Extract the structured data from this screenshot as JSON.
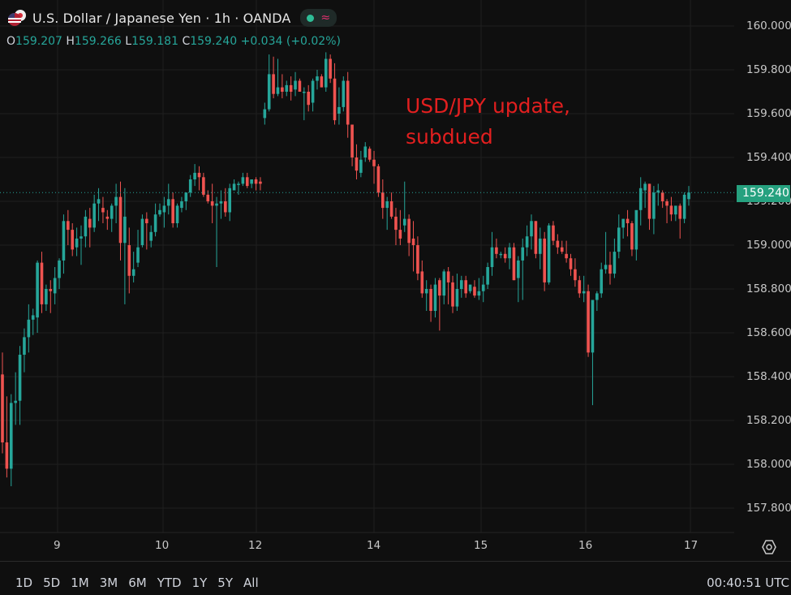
{
  "header": {
    "symbol_title": "U.S. Dollar / Japanese Yen · 1h · OANDA",
    "status_dot_color": "#2ebd96",
    "wave_glyph": "≈",
    "ohlc": {
      "o_label": "O",
      "o_value": "159.207",
      "h_label": "H",
      "h_value": "159.266",
      "l_label": "L",
      "l_value": "159.181",
      "c_label": "C",
      "c_value": "159.240",
      "change": "+0.034 (+0.02%)"
    }
  },
  "annotation": {
    "line1": "USD/JPY update,",
    "line2": "subdued",
    "color": "#e21f1f"
  },
  "price_axis": {
    "labels": [
      "160.000",
      "159.800",
      "159.600",
      "159.400",
      "159.200",
      "159.000",
      "158.800",
      "158.600",
      "158.400",
      "158.200",
      "158.000",
      "157.800"
    ],
    "last_price": "159.240",
    "last_price_color": "#26a17f"
  },
  "time_axis": {
    "labels": [
      "9",
      "10",
      "12",
      "14",
      "15",
      "16",
      "17"
    ]
  },
  "bottom_bar": {
    "ranges": [
      "1D",
      "5D",
      "1M",
      "3M",
      "6M",
      "YTD",
      "1Y",
      "5Y",
      "All"
    ],
    "clock": "00:40:51 UTC"
  },
  "colors": {
    "up": "#26a69a",
    "down": "#ef5350",
    "background": "#0f0f0f",
    "grid": "#1f1f1f"
  },
  "chart_data": {
    "type": "candlestick",
    "title": "U.S. Dollar / Japanese Yen · 1h · OANDA",
    "xlabel": "",
    "ylabel": "",
    "ylim": [
      157.7,
      160.05
    ],
    "x_ticks": [
      "9",
      "10",
      "12",
      "14",
      "15",
      "16",
      "17"
    ],
    "y_ticks": [
      157.8,
      158.0,
      158.2,
      158.4,
      158.6,
      158.8,
      159.0,
      159.2,
      159.4,
      159.6,
      159.8,
      160.0
    ],
    "grid": true,
    "last_price": 159.24,
    "annotation": "USD/JPY update, subdued",
    "candles": [
      [
        158.41,
        158.51,
        158.05,
        158.1
      ],
      [
        158.1,
        158.31,
        157.94,
        157.98
      ],
      [
        157.98,
        158.32,
        157.9,
        158.28
      ],
      [
        158.28,
        158.42,
        158.18,
        158.29
      ],
      [
        158.29,
        158.54,
        158.18,
        158.5
      ],
      [
        158.5,
        158.62,
        158.42,
        158.58
      ],
      [
        158.58,
        158.73,
        158.51,
        158.66
      ],
      [
        158.66,
        158.71,
        158.59,
        158.68
      ],
      [
        158.67,
        158.93,
        158.6,
        158.92
      ],
      [
        158.92,
        158.97,
        158.69,
        158.73
      ],
      [
        158.73,
        158.82,
        158.7,
        158.8
      ],
      [
        158.8,
        158.84,
        158.69,
        158.79
      ],
      [
        158.78,
        158.9,
        158.73,
        158.85
      ],
      [
        158.85,
        158.94,
        158.8,
        158.93
      ],
      [
        158.93,
        159.14,
        158.87,
        159.11
      ],
      [
        159.11,
        159.16,
        159.0,
        159.07
      ],
      [
        159.07,
        159.1,
        158.95,
        158.98
      ],
      [
        158.99,
        159.08,
        158.95,
        159.03
      ],
      [
        159.03,
        159.09,
        158.91,
        159.04
      ],
      [
        159.04,
        159.16,
        158.99,
        159.13
      ],
      [
        159.12,
        159.17,
        158.99,
        159.08
      ],
      [
        159.08,
        159.23,
        159.06,
        159.19
      ],
      [
        159.19,
        159.26,
        159.11,
        159.21
      ],
      [
        159.17,
        159.22,
        159.1,
        159.15
      ],
      [
        159.13,
        159.16,
        159.07,
        159.12
      ],
      [
        159.12,
        159.19,
        159.06,
        159.18
      ],
      [
        159.18,
        159.28,
        159.1,
        159.22
      ],
      [
        159.22,
        159.29,
        158.93,
        159.01
      ],
      [
        159.01,
        159.26,
        158.73,
        159.13
      ],
      [
        159.0,
        159.08,
        158.78,
        158.86
      ],
      [
        158.86,
        158.97,
        158.83,
        158.89
      ],
      [
        158.92,
        159.07,
        158.9,
        158.99
      ],
      [
        159.0,
        159.14,
        158.99,
        159.12
      ],
      [
        159.12,
        159.15,
        158.98,
        159.1
      ],
      [
        159.02,
        159.09,
        158.99,
        159.06
      ],
      [
        159.06,
        159.19,
        159.04,
        159.14
      ],
      [
        159.14,
        159.19,
        159.13,
        159.16
      ],
      [
        159.15,
        159.22,
        159.08,
        159.18
      ],
      [
        159.18,
        159.28,
        159.14,
        159.21
      ],
      [
        159.21,
        159.24,
        159.08,
        159.1
      ],
      [
        159.1,
        159.19,
        159.08,
        159.18
      ],
      [
        159.17,
        159.22,
        159.15,
        159.2
      ],
      [
        159.2,
        159.24,
        159.16,
        159.24
      ],
      [
        159.24,
        159.32,
        159.22,
        159.3
      ],
      [
        159.3,
        159.37,
        159.27,
        159.33
      ],
      [
        159.33,
        159.36,
        159.25,
        159.31
      ],
      [
        159.31,
        159.33,
        159.22,
        159.23
      ],
      [
        159.23,
        159.25,
        159.19,
        159.2
      ],
      [
        159.2,
        159.28,
        159.1,
        159.18
      ],
      [
        159.18,
        159.22,
        158.9,
        159.19
      ],
      [
        159.19,
        159.25,
        159.12,
        159.2
      ],
      [
        159.2,
        159.26,
        159.13,
        159.15
      ],
      [
        159.15,
        159.28,
        159.11,
        159.26
      ],
      [
        159.25,
        159.3,
        159.25,
        159.28
      ],
      [
        159.28,
        159.29,
        159.23,
        159.28
      ],
      [
        159.28,
        159.33,
        159.27,
        159.31
      ],
      [
        159.31,
        159.33,
        159.26,
        159.27
      ],
      [
        159.28,
        159.28,
        159.26,
        159.3
      ],
      [
        159.3,
        159.31,
        159.25,
        159.28
      ],
      [
        159.29,
        159.31,
        159.25,
        159.28
      ],
      [
        159.58,
        159.65,
        159.55,
        159.62
      ],
      [
        159.62,
        159.87,
        159.61,
        159.78
      ],
      [
        159.78,
        159.86,
        159.67,
        159.69
      ],
      [
        159.69,
        159.85,
        159.68,
        159.72
      ],
      [
        159.72,
        159.78,
        159.67,
        159.7
      ],
      [
        159.7,
        159.75,
        159.68,
        159.73
      ],
      [
        159.73,
        159.77,
        159.66,
        159.7
      ],
      [
        159.71,
        159.79,
        159.68,
        159.75
      ],
      [
        159.75,
        159.76,
        159.7,
        159.7
      ],
      [
        159.7,
        159.72,
        159.57,
        159.7
      ],
      [
        159.7,
        159.73,
        159.61,
        159.64
      ],
      [
        159.65,
        159.76,
        159.61,
        159.75
      ],
      [
        159.75,
        159.8,
        159.71,
        159.77
      ],
      [
        159.77,
        159.78,
        159.72,
        159.72
      ],
      [
        159.72,
        159.88,
        159.7,
        159.85
      ],
      [
        159.85,
        159.87,
        159.74,
        159.76
      ],
      [
        159.76,
        159.83,
        159.55,
        159.57
      ],
      [
        159.6,
        159.72,
        159.55,
        159.63
      ],
      [
        159.63,
        159.77,
        159.61,
        159.75
      ],
      [
        159.75,
        159.79,
        159.49,
        159.55
      ],
      [
        159.55,
        159.55,
        159.36,
        159.4
      ],
      [
        159.4,
        159.46,
        159.3,
        159.34
      ],
      [
        159.33,
        159.43,
        159.31,
        159.39
      ],
      [
        159.4,
        159.47,
        159.38,
        159.45
      ],
      [
        159.44,
        159.45,
        159.38,
        159.39
      ],
      [
        159.39,
        159.43,
        159.28,
        159.36
      ],
      [
        159.36,
        159.37,
        159.22,
        159.24
      ],
      [
        159.24,
        159.3,
        159.12,
        159.17
      ],
      [
        159.17,
        159.22,
        159.07,
        159.2
      ],
      [
        159.2,
        159.24,
        159.12,
        159.13
      ],
      [
        159.13,
        159.17,
        159.0,
        159.07
      ],
      [
        159.07,
        159.16,
        159.0,
        159.03
      ],
      [
        159.09,
        159.29,
        159.06,
        159.12
      ],
      [
        159.12,
        159.14,
        158.95,
        159.01
      ],
      [
        159.03,
        159.11,
        158.88,
        159.0
      ],
      [
        159.0,
        159.04,
        158.84,
        158.87
      ],
      [
        158.88,
        158.93,
        158.76,
        158.78
      ],
      [
        158.78,
        158.84,
        158.7,
        158.8
      ],
      [
        158.8,
        158.82,
        158.65,
        158.7
      ],
      [
        158.7,
        158.85,
        158.67,
        158.82
      ],
      [
        158.84,
        158.85,
        158.61,
        158.77
      ],
      [
        158.77,
        158.89,
        158.73,
        158.88
      ],
      [
        158.88,
        158.9,
        158.73,
        158.83
      ],
      [
        158.83,
        158.86,
        158.69,
        158.72
      ],
      [
        158.72,
        158.87,
        158.7,
        158.8
      ],
      [
        158.8,
        158.86,
        158.76,
        158.84
      ],
      [
        158.84,
        158.86,
        158.76,
        158.78
      ],
      [
        158.79,
        158.82,
        158.78,
        158.82
      ],
      [
        158.81,
        158.84,
        158.76,
        158.77
      ],
      [
        158.77,
        158.85,
        158.75,
        158.79
      ],
      [
        158.79,
        158.86,
        158.74,
        158.82
      ],
      [
        158.82,
        158.92,
        158.8,
        158.9
      ],
      [
        158.9,
        159.06,
        158.86,
        158.99
      ],
      [
        158.99,
        159.03,
        158.94,
        158.96
      ],
      [
        158.96,
        158.97,
        158.94,
        158.96
      ],
      [
        158.96,
        158.99,
        158.92,
        158.94
      ],
      [
        158.94,
        159.01,
        158.89,
        158.99
      ],
      [
        158.99,
        159.01,
        158.84,
        158.84
      ],
      [
        158.85,
        158.95,
        158.74,
        158.93
      ],
      [
        158.93,
        159.03,
        158.75,
        158.99
      ],
      [
        158.99,
        159.09,
        158.95,
        159.04
      ],
      [
        159.04,
        159.14,
        158.98,
        159.11
      ],
      [
        159.11,
        159.11,
        158.94,
        158.96
      ],
      [
        158.96,
        159.08,
        158.89,
        159.03
      ],
      [
        159.03,
        159.06,
        158.79,
        158.83
      ],
      [
        158.83,
        159.1,
        158.82,
        159.09
      ],
      [
        159.09,
        159.11,
        159.0,
        159.02
      ],
      [
        159.02,
        159.05,
        158.96,
        158.99
      ],
      [
        158.99,
        159.02,
        158.96,
        158.97
      ],
      [
        158.96,
        159.02,
        158.92,
        158.94
      ],
      [
        158.94,
        158.96,
        158.86,
        158.89
      ],
      [
        158.89,
        158.94,
        158.81,
        158.84
      ],
      [
        158.84,
        158.86,
        158.76,
        158.78
      ],
      [
        158.78,
        158.86,
        158.74,
        158.79
      ],
      [
        158.79,
        158.82,
        158.49,
        158.51
      ],
      [
        158.51,
        158.75,
        158.27,
        158.75
      ],
      [
        158.75,
        158.79,
        158.7,
        158.78
      ],
      [
        158.78,
        158.92,
        158.76,
        158.89
      ],
      [
        158.89,
        159.06,
        158.87,
        158.91
      ],
      [
        158.91,
        158.97,
        158.82,
        158.87
      ],
      [
        158.87,
        159.03,
        158.85,
        158.97
      ],
      [
        158.97,
        159.14,
        158.94,
        159.08
      ],
      [
        159.08,
        159.11,
        159.03,
        159.12
      ],
      [
        159.12,
        159.16,
        159.04,
        159.1
      ],
      [
        159.1,
        159.11,
        158.95,
        158.98
      ],
      [
        158.98,
        159.14,
        158.93,
        159.16
      ],
      [
        159.16,
        159.31,
        159.09,
        159.26
      ],
      [
        159.25,
        159.29,
        159.17,
        159.28
      ],
      [
        159.28,
        159.28,
        159.07,
        159.12
      ],
      [
        159.12,
        159.27,
        159.05,
        159.24
      ],
      [
        159.24,
        159.28,
        159.18,
        159.25
      ],
      [
        159.24,
        159.25,
        159.17,
        159.2
      ],
      [
        159.2,
        159.21,
        159.1,
        159.18
      ],
      [
        159.18,
        159.22,
        159.11,
        159.14
      ],
      [
        159.14,
        159.16,
        159.11,
        159.18
      ],
      [
        159.18,
        159.19,
        159.03,
        159.12
      ],
      [
        159.12,
        159.24,
        159.1,
        159.23
      ],
      [
        159.21,
        159.27,
        159.18,
        159.24
      ]
    ],
    "candle_format": [
      "open",
      "high",
      "low",
      "close"
    ]
  }
}
